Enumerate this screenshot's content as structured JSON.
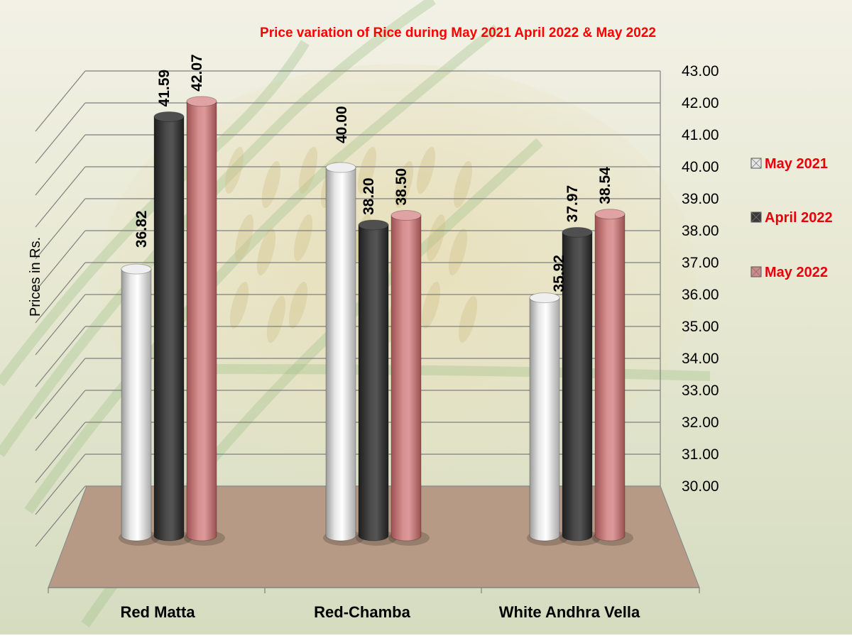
{
  "colors": {
    "title": "#ff0000",
    "legend_text": "#e8000b",
    "floor": "#b79a86",
    "grid": "#808080"
  },
  "chart_data": {
    "type": "bar",
    "title": "Price variation of Rice during  May 2021  April 2022  &  May 2022",
    "ylabel": "Prices in Rs.",
    "xlabel": "",
    "ylim": [
      30,
      43
    ],
    "y_ticks": [
      "30.00",
      "31.00",
      "32.00",
      "33.00",
      "34.00",
      "35.00",
      "36.00",
      "37.00",
      "38.00",
      "39.00",
      "40.00",
      "41.00",
      "42.00",
      "43.00"
    ],
    "categories": [
      "Red Matta",
      "Red-Chamba",
      "White Andhra Vella"
    ],
    "series": [
      {
        "name": "May 2021",
        "color": "#d9d9d9",
        "values": [
          36.82,
          40.0,
          35.92
        ]
      },
      {
        "name": "April 2022",
        "color": "#3f3f3f",
        "values": [
          41.59,
          38.2,
          37.97
        ]
      },
      {
        "name": "May 2022",
        "color": "#c97878",
        "values": [
          42.07,
          38.5,
          38.54
        ]
      }
    ],
    "grid": true,
    "legend_position": "right",
    "style": "3d-cylinder"
  }
}
